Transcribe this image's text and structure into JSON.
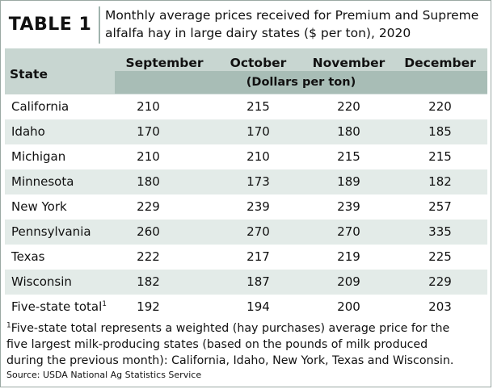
{
  "header": {
    "table_label": "TABLE 1",
    "caption_line1": "Monthly average prices received for Premium and Supreme",
    "caption_line2": "alfalfa hay in large dairy states ($ per ton), 2020"
  },
  "table": {
    "state_header": "State",
    "months": [
      "September",
      "October",
      "November",
      "December"
    ],
    "unit_label": "(Dollars per ton)",
    "rows": [
      {
        "state": "California",
        "values": [
          "210",
          "215",
          "220",
          "220"
        ]
      },
      {
        "state": "Idaho",
        "values": [
          "170",
          "170",
          "180",
          "185"
        ]
      },
      {
        "state": "Michigan",
        "values": [
          "210",
          "210",
          "215",
          "215"
        ]
      },
      {
        "state": "Minnesota",
        "values": [
          "180",
          "173",
          "189",
          "182"
        ]
      },
      {
        "state": "New York",
        "values": [
          "229",
          "239",
          "239",
          "257"
        ]
      },
      {
        "state": "Pennsylvania",
        "values": [
          "260",
          "270",
          "270",
          "335"
        ]
      },
      {
        "state": "Texas",
        "values": [
          "222",
          "217",
          "219",
          "225"
        ]
      },
      {
        "state": "Wisconsin",
        "values": [
          "182",
          "187",
          "209",
          "229"
        ]
      },
      {
        "state": "Five-state total",
        "sup": "1",
        "values": [
          "192",
          "194",
          "200",
          "203"
        ]
      }
    ]
  },
  "footnote": {
    "marker": "1",
    "line1": "Five-state total represents a weighted (hay purchases) average price for the",
    "line2": "five largest milk-producing states (based on the pounds of milk produced",
    "line3": "during the previous month): California, Idaho, New York, Texas and Wisconsin."
  },
  "source": "Source: USDA National Ag Statistics Service"
}
